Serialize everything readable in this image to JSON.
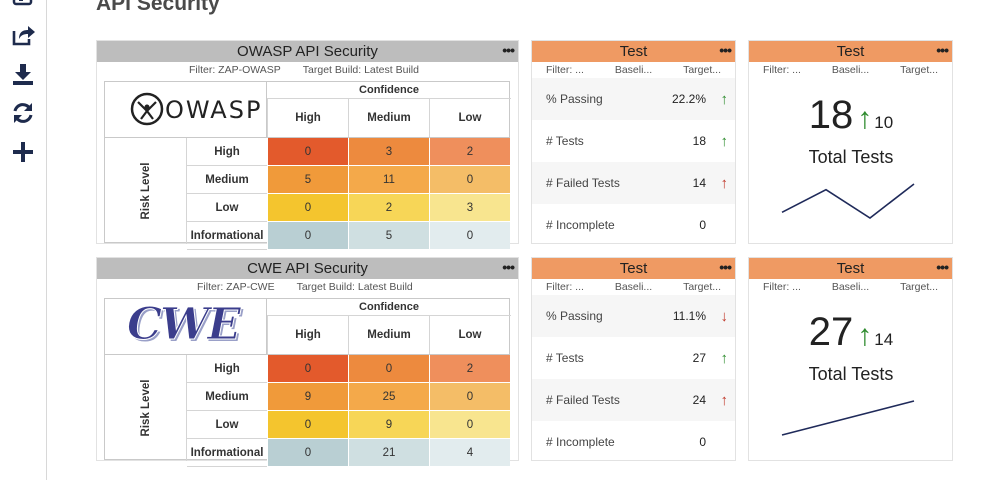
{
  "page": {
    "title": "API Security"
  },
  "sidebar": {
    "icons": [
      "export-icon",
      "download-icon",
      "refresh-icon",
      "plus-icon"
    ]
  },
  "panels": [
    {
      "title": "OWASP API Security",
      "filter": "Filter: ZAP-OWASP",
      "target_build": "Target Build: Latest Build",
      "logo_text": "OWASP",
      "confidence_label": "Confidence",
      "risk_label": "Risk Level",
      "columns": [
        "High",
        "Medium",
        "Low"
      ],
      "rows": [
        {
          "label": "High",
          "values": [
            "0",
            "3",
            "2"
          ]
        },
        {
          "label": "Medium",
          "values": [
            "5",
            "11",
            "0"
          ]
        },
        {
          "label": "Low",
          "values": [
            "0",
            "2",
            "3"
          ]
        },
        {
          "label": "Informational",
          "values": [
            "0",
            "5",
            "0"
          ]
        }
      ],
      "test_card": {
        "title": "Test",
        "filters": [
          "Filter: ...",
          "Baseli...",
          "Target..."
        ],
        "rows": [
          {
            "label": "% Passing",
            "value": "22.2%",
            "arrow": "↑",
            "dir": "up"
          },
          {
            "label": "# Tests",
            "value": "18",
            "arrow": "↑",
            "dir": "up"
          },
          {
            "label": "# Failed Tests",
            "value": "14",
            "arrow": "↑",
            "dir": "down"
          },
          {
            "label": "# Incomplete",
            "value": "0",
            "arrow": "",
            "dir": ""
          }
        ]
      },
      "total_card": {
        "title": "Test",
        "filters": [
          "Filter: ...",
          "Baseli...",
          "Target..."
        ],
        "number": "18",
        "arrow": "↑",
        "delta": "10",
        "label": "Total Tests",
        "trend": [
          2,
          6,
          1,
          7
        ]
      }
    },
    {
      "title": "CWE API Security",
      "filter": "Filter: ZAP-CWE",
      "target_build": "Target Build: Latest Build",
      "logo_text": "CWE",
      "confidence_label": "Confidence",
      "risk_label": "Risk Level",
      "columns": [
        "High",
        "Medium",
        "Low"
      ],
      "rows": [
        {
          "label": "High",
          "values": [
            "0",
            "0",
            "2"
          ]
        },
        {
          "label": "Medium",
          "values": [
            "9",
            "25",
            "0"
          ]
        },
        {
          "label": "Low",
          "values": [
            "0",
            "9",
            "0"
          ]
        },
        {
          "label": "Informational",
          "values": [
            "0",
            "21",
            "4"
          ]
        }
      ],
      "test_card": {
        "title": "Test",
        "filters": [
          "Filter: ...",
          "Baseli...",
          "Target..."
        ],
        "rows": [
          {
            "label": "% Passing",
            "value": "11.1%",
            "arrow": "↓",
            "dir": "down"
          },
          {
            "label": "# Tests",
            "value": "27",
            "arrow": "↑",
            "dir": "up"
          },
          {
            "label": "# Failed Tests",
            "value": "24",
            "arrow": "↑",
            "dir": "down"
          },
          {
            "label": "# Incomplete",
            "value": "0",
            "arrow": "",
            "dir": ""
          }
        ]
      },
      "total_card": {
        "title": "Test",
        "filters": [
          "Filter: ...",
          "Baseli...",
          "Target..."
        ],
        "number": "27",
        "arrow": "↑",
        "delta": "14",
        "label": "Total Tests",
        "trend": [
          1,
          5
        ]
      }
    }
  ],
  "colors": {
    "cells": [
      [
        "#e35a2c",
        "#ed8a3e",
        "#ef8f5c"
      ],
      [
        "#f09a3a",
        "#f4a94a",
        "#f4bd67"
      ],
      [
        "#f4c52e",
        "#f7d657",
        "#f8e58f"
      ],
      [
        "#b9cfd3",
        "#cfdfe1",
        "#e2ecee"
      ]
    ],
    "header_grey": "#bdbdbd",
    "header_orange": "#ef9a63",
    "arrow_up": "#2e8b2e",
    "arrow_down": "#c0392b",
    "trend_line": "#1f2a5a"
  }
}
